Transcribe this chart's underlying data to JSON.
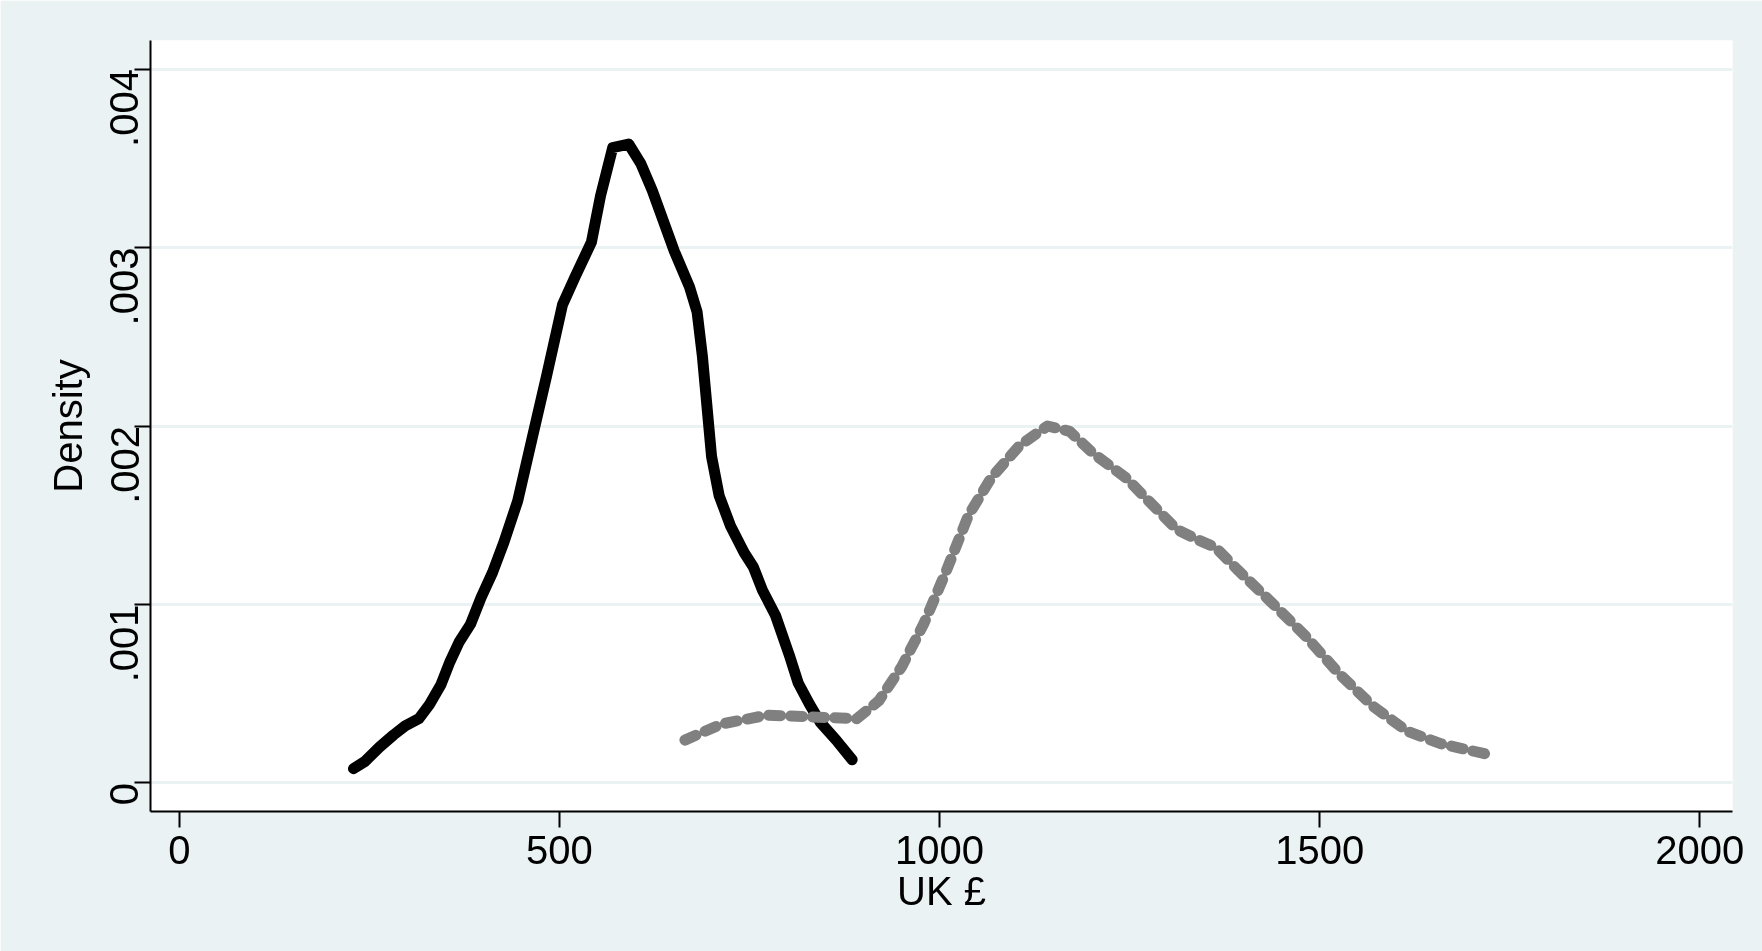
{
  "chart_data": {
    "type": "line",
    "xlabel": "UK £",
    "ylabel": "Density",
    "xlim": [
      -38,
      2043
    ],
    "ylim": [
      -0.00016,
      0.00416
    ],
    "xticks": [
      0,
      500,
      1000,
      1500,
      2000
    ],
    "yticks": [
      {
        "value": 0,
        "label": "0"
      },
      {
        "value": 0.001,
        "label": ".001"
      },
      {
        "value": 0.002,
        "label": ".002"
      },
      {
        "value": 0.003,
        "label": ".003"
      },
      {
        "value": 0.004,
        "label": ".004"
      }
    ],
    "grid": "y",
    "series": [
      {
        "color": "#000000",
        "line_style": "solid",
        "x": [
          229,
          244,
          263,
          282,
          297,
          315,
          329,
          344,
          356,
          368,
          383,
          397,
          412,
          427,
          445,
          465,
          483,
          504,
          521,
          542,
          554,
          570,
          591,
          607,
          622,
          651,
          671,
          681,
          688,
          700,
          710,
          725,
          743,
          755,
          767,
          784,
          802,
          814,
          829,
          843,
          864,
          885
        ],
        "values": [
          8e-05,
          0.00012,
          0.0002,
          0.00027,
          0.00032,
          0.00036,
          0.00044,
          0.00055,
          0.00068,
          0.00079,
          0.00089,
          0.00104,
          0.00118,
          0.00135,
          0.00158,
          0.00195,
          0.00228,
          0.00268,
          0.00284,
          0.00303,
          0.00329,
          0.00356,
          0.00358,
          0.00347,
          0.00332,
          0.00298,
          0.00278,
          0.00264,
          0.00239,
          0.00183,
          0.00161,
          0.00144,
          0.00129,
          0.00121,
          0.00108,
          0.00094,
          0.00072,
          0.00056,
          0.00044,
          0.00034,
          0.00024,
          0.00013
        ]
      },
      {
        "color": "#808080",
        "line_style": "dashed",
        "x": [
          665,
          713,
          773,
          832,
          891,
          920,
          950,
          979,
          1009,
          1038,
          1068,
          1105,
          1142,
          1171,
          1201,
          1245,
          1275,
          1312,
          1341,
          1363,
          1393,
          1437,
          1482,
          1526,
          1570,
          1615,
          1659,
          1721
        ],
        "values": [
          0.00024,
          0.00033,
          0.00038,
          0.00037,
          0.00036,
          0.00046,
          0.00065,
          0.00089,
          0.00119,
          0.0015,
          0.00171,
          0.00189,
          0.002,
          0.00197,
          0.00185,
          0.00171,
          0.00158,
          0.00142,
          0.00136,
          0.00132,
          0.00119,
          0.00101,
          0.00082,
          0.00061,
          0.00043,
          0.00029,
          0.00022,
          0.00016
        ]
      }
    ]
  }
}
